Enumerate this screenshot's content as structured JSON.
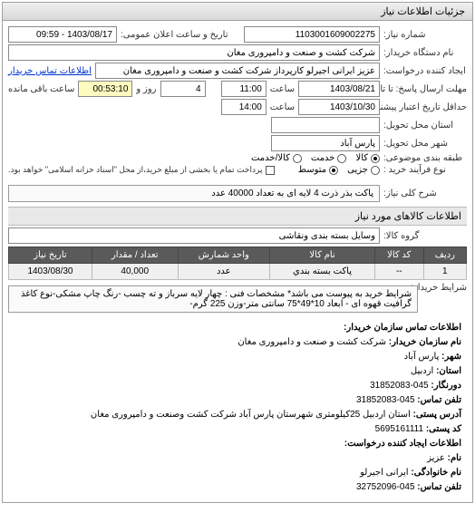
{
  "panel_title": "جزئیات اطلاعات نیاز",
  "fields": {
    "req_no_label": "شماره نیاز:",
    "req_no": "1103001609002275",
    "pub_date_label": "تاریخ و ساعت اعلان عمومی:",
    "pub_date": "1403/08/17 - 09:59",
    "device_label": "نام دستگاه خریدار:",
    "device": "شرکت کشت و صنعت و دامپروری مغان",
    "creator_label": "ایجاد کننده درخواست:",
    "creator": "عزیز ایرانی اجیرلو کارپرداز شرکت کشت و صنعت و دامپروری مغان",
    "contact_link": "اطلاعات تماس خریدار",
    "deadline_label": "مهلت ارسال پاسخ: تا تاریخ:",
    "deadline_date": "1403/08/21",
    "deadline_time_label": "ساعت",
    "deadline_time": "11:00",
    "days_label": "روز و",
    "days": "4",
    "remain_label": "ساعت باقی مانده",
    "remain": "00:53:10",
    "delivery_until_label": "حداقل تاریخ اعتبار پیشنهاد: تا تاریخ:",
    "delivery_date": "1403/10/30",
    "delivery_time": "14:00",
    "province_label": "استان محل تحویل:",
    "city_label": "شهر محل تحویل:",
    "city": "پارس آباد",
    "pack_label": "طبقه بندی موضوعی:",
    "pack_opts": {
      "kala": "کالا",
      "khedmat": "خدمت",
      "kala_khedmat": "کالا/خدمت"
    },
    "buy_type_label": "نوع فرآیند خرید :",
    "buy_opts": {
      "jozi": "جزیی",
      "motevaset": "متوسط"
    },
    "note": "پرداخت تمام یا بخشی از مبلغ خرید،از محل \"اسناد خزانه اسلامی\" خواهد بود.",
    "note_check_label": ""
  },
  "desc": {
    "title_label": "شرح کلی نیاز:",
    "title_text": "پاکت بذر ذرت 4 لایه ای به تعداد 40000 عدد",
    "group_section": "اطلاعات کالاهای مورد نیاز",
    "group_label": "گروه کالا:",
    "group_value": "وسایل بسته بندی ونقاشی"
  },
  "table": {
    "headers": [
      "ردیف",
      "کد کالا",
      "نام کالا",
      "واحد شمارش",
      "تعداد / مقدار",
      "تاریخ نیاز"
    ],
    "rows": [
      [
        "1",
        "--",
        "پاکت بسته بندي",
        "عدد",
        "40,000",
        "1403/08/30"
      ]
    ]
  },
  "conditions": {
    "label": "شرایط خریدار:",
    "text": "شرایط خرید به پیوست می باشد* مشخصات فنی : چهار لایه سرباز و ته چسب -رنگ چاپ مشکی-نوع کاغذ گرافیت قهوه ای - ابعاد 10*49*75 سانتی متر-وزن 225 گرم-"
  },
  "contact": {
    "section": "اطلاعات تماس سازمان خریدار:",
    "org_label": "نام سازمان خریدار:",
    "org": "شرکت کشت و صنعت و دامپروری مغان",
    "city_label": "شهر:",
    "city": "پارس آباد",
    "province_label": "استان:",
    "province": "اردبیل",
    "fax_label": "دورنگار:",
    "fax": "045-31852083",
    "tel_label": "تلفن تماس:",
    "tel": "045-31852083",
    "addr_label": "آدرس پستی:",
    "addr": "استان اردبیل 25کیلومتری شهرستان پارس آباد شرکت کشت وصنعت و دامپروری مغان",
    "post_label": "کد پستی:",
    "post": "5695161111",
    "req_creator_section": "اطلاعات ایجاد کننده درخواست:",
    "name_label": "نام:",
    "name": "عزیز",
    "family_label": "نام خانوادگی:",
    "family": "ایرانی اجیرلو",
    "tel2_label": "تلفن تماس:",
    "tel2": "045-32752096"
  }
}
